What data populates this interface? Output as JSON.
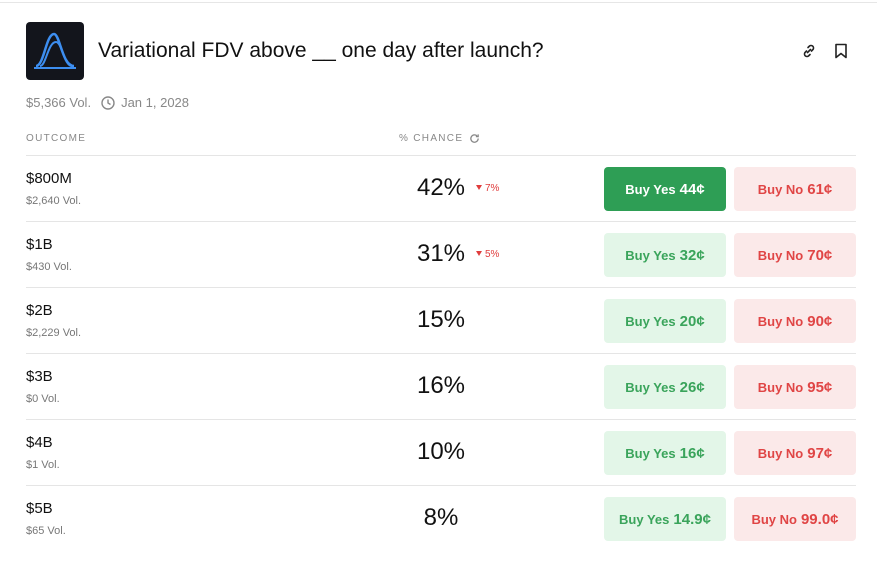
{
  "header": {
    "title": "Variational FDV above __ one day after launch?",
    "volume": "$5,366 Vol.",
    "date": "Jan 1, 2028"
  },
  "table": {
    "columns": [
      "OUTCOME",
      "% CHANCE"
    ],
    "rows": [
      {
        "outcome": "$800M",
        "volume": "$2,640 Vol.",
        "chance": "42%",
        "change": "7%",
        "yes_label": "Buy Yes",
        "yes_price": "44¢",
        "no_label": "Buy No",
        "no_price": "61¢"
      },
      {
        "outcome": "$1B",
        "volume": "$430 Vol.",
        "chance": "31%",
        "change": "5%",
        "yes_label": "Buy Yes",
        "yes_price": "32¢",
        "no_label": "Buy No",
        "no_price": "70¢"
      },
      {
        "outcome": "$2B",
        "volume": "$2,229 Vol.",
        "chance": "15%",
        "yes_label": "Buy Yes",
        "yes_price": "20¢",
        "no_label": "Buy No",
        "no_price": "90¢"
      },
      {
        "outcome": "$3B",
        "volume": "$0 Vol.",
        "chance": "16%",
        "yes_label": "Buy Yes",
        "yes_price": "26¢",
        "no_label": "Buy No",
        "no_price": "95¢"
      },
      {
        "outcome": "$4B",
        "volume": "$1 Vol.",
        "chance": "10%",
        "yes_label": "Buy Yes",
        "yes_price": "16¢",
        "no_label": "Buy No",
        "no_price": "97¢"
      },
      {
        "outcome": "$5B",
        "volume": "$65 Vol.",
        "chance": "8%",
        "yes_label": "Buy Yes",
        "yes_price": "14.9¢",
        "no_label": "Buy No",
        "no_price": "99.0¢"
      }
    ]
  }
}
